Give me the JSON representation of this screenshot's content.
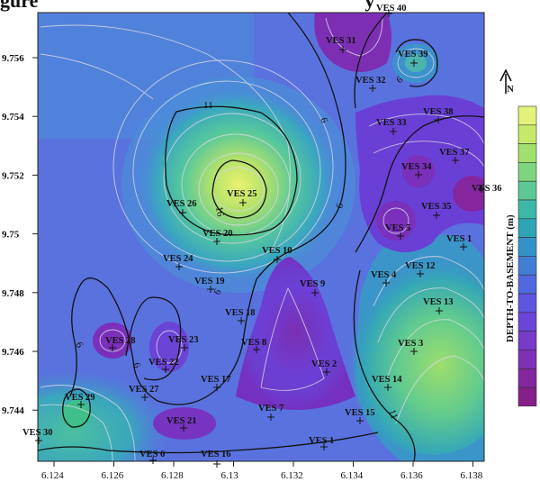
{
  "figure": {
    "title_fragment_left": "gure",
    "title_fragment_right": "y"
  },
  "axes": {
    "x_ticks": [
      "6.124",
      "6.126",
      "6.128",
      "6.13",
      "6.132",
      "6.134",
      "6.136",
      "6.138"
    ],
    "y_ticks": [
      "9.756",
      "9.754",
      "9.752",
      "9.75",
      "9.748",
      "9.746",
      "9.744"
    ]
  },
  "legend": {
    "title": "DEPTH-TO-BASEMENT (m)",
    "colors": [
      "#e3f27a",
      "#c5ea6b",
      "#a3df6e",
      "#7fd57f",
      "#5cc896",
      "#3cb8a6",
      "#2ea4b6",
      "#3592c8",
      "#427fd4",
      "#5069de",
      "#5e55e0",
      "#6b45d8",
      "#773ac9",
      "#7f30b7",
      "#84279f",
      "#861f8a"
    ]
  },
  "north_arrow": {
    "label": "N"
  },
  "stations": [
    {
      "name": "VES 40"
    },
    {
      "name": "VES 31"
    },
    {
      "name": "VES 39"
    },
    {
      "name": "VES 32"
    },
    {
      "name": "VES 38"
    },
    {
      "name": "VES 33"
    },
    {
      "name": "VES 37"
    },
    {
      "name": "VES 34"
    },
    {
      "name": "VES 36"
    },
    {
      "name": "VES 35"
    },
    {
      "name": "VES 25"
    },
    {
      "name": "VES 26"
    },
    {
      "name": "VES 20"
    },
    {
      "name": "VES 5"
    },
    {
      "name": "VES 1"
    },
    {
      "name": "VES 10"
    },
    {
      "name": "VES 24"
    },
    {
      "name": "VES 12"
    },
    {
      "name": "VES 4"
    },
    {
      "name": "VES 19"
    },
    {
      "name": "VES 9"
    },
    {
      "name": "VES 13"
    },
    {
      "name": "VES 18"
    },
    {
      "name": "VES 28"
    },
    {
      "name": "VES 23"
    },
    {
      "name": "VES 8"
    },
    {
      "name": "VES 3"
    },
    {
      "name": "VES 22"
    },
    {
      "name": "VES 2"
    },
    {
      "name": "VES 17"
    },
    {
      "name": "VES 14"
    },
    {
      "name": "VES 27"
    },
    {
      "name": "VES 29"
    },
    {
      "name": "VES 7"
    },
    {
      "name": "VES 21"
    },
    {
      "name": "VES 15"
    },
    {
      "name": "VES 30"
    },
    {
      "name": "VES 1"
    },
    {
      "name": "VES 6"
    },
    {
      "name": "VES 16"
    }
  ],
  "contour_labels": [
    "6",
    "6",
    "11",
    "16",
    "6",
    "6",
    "6",
    "6",
    "11"
  ]
}
